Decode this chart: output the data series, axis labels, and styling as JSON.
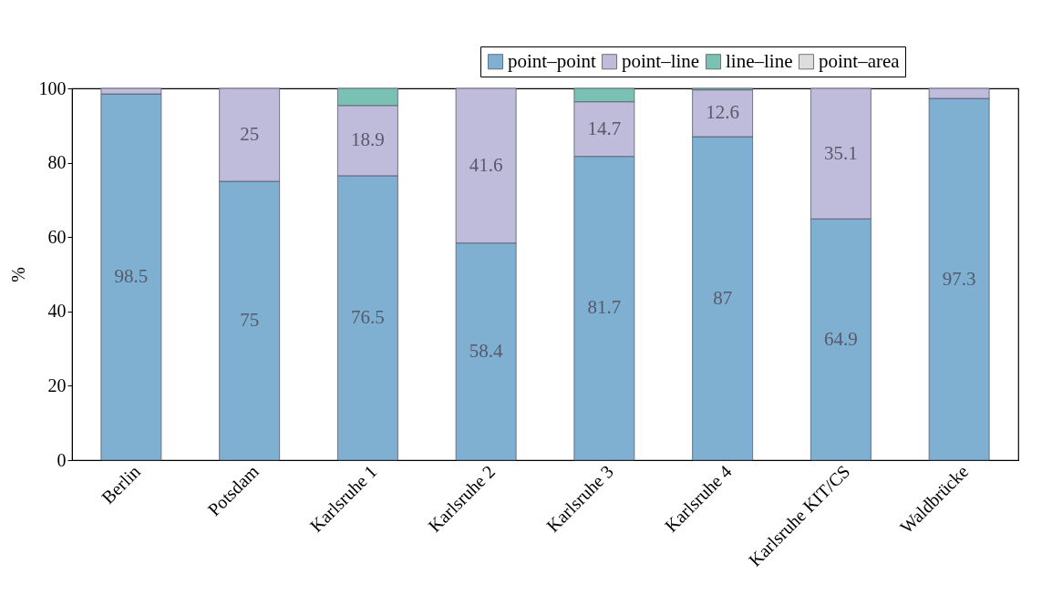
{
  "chart_data": {
    "type": "bar",
    "stacked": true,
    "ylabel": "%",
    "categories": [
      "Berlin",
      "Potsdam",
      "Karlsruhe 1",
      "Karlsruhe 2",
      "Karlsruhe 3",
      "Karlsruhe 4",
      "Karlsruhe KIT/CS",
      "Waldbrücke"
    ],
    "ylim": [
      0,
      100
    ],
    "yticks": [
      0,
      20,
      40,
      60,
      80,
      100
    ],
    "legend": "top right",
    "grid": false,
    "series": [
      {
        "name": "point–point",
        "color": "#7fb0d2",
        "values": [
          98.5,
          75,
          76.5,
          58.4,
          81.7,
          87,
          64.9,
          97.3
        ],
        "value_labels": [
          "98.5",
          "75",
          "76.5",
          "58.4",
          "81.7",
          "87",
          "64.9",
          "97.3"
        ]
      },
      {
        "name": "point–line",
        "color": "#bebbdb",
        "values": [
          1.5,
          25,
          18.9,
          41.6,
          14.7,
          12.6,
          35.1,
          2.7
        ],
        "value_labels": [
          null,
          "25",
          "18.9",
          "41.6",
          "14.7",
          "12.6",
          "35.1",
          null
        ]
      },
      {
        "name": "line–line",
        "color": "#7ac1b3",
        "values": [
          null,
          null,
          4.6,
          null,
          3.6,
          0.4,
          null,
          null
        ]
      },
      {
        "name": "point–area",
        "color": "#dddddd",
        "values": [
          null,
          null,
          null,
          null,
          null,
          null,
          null,
          null
        ]
      }
    ]
  }
}
